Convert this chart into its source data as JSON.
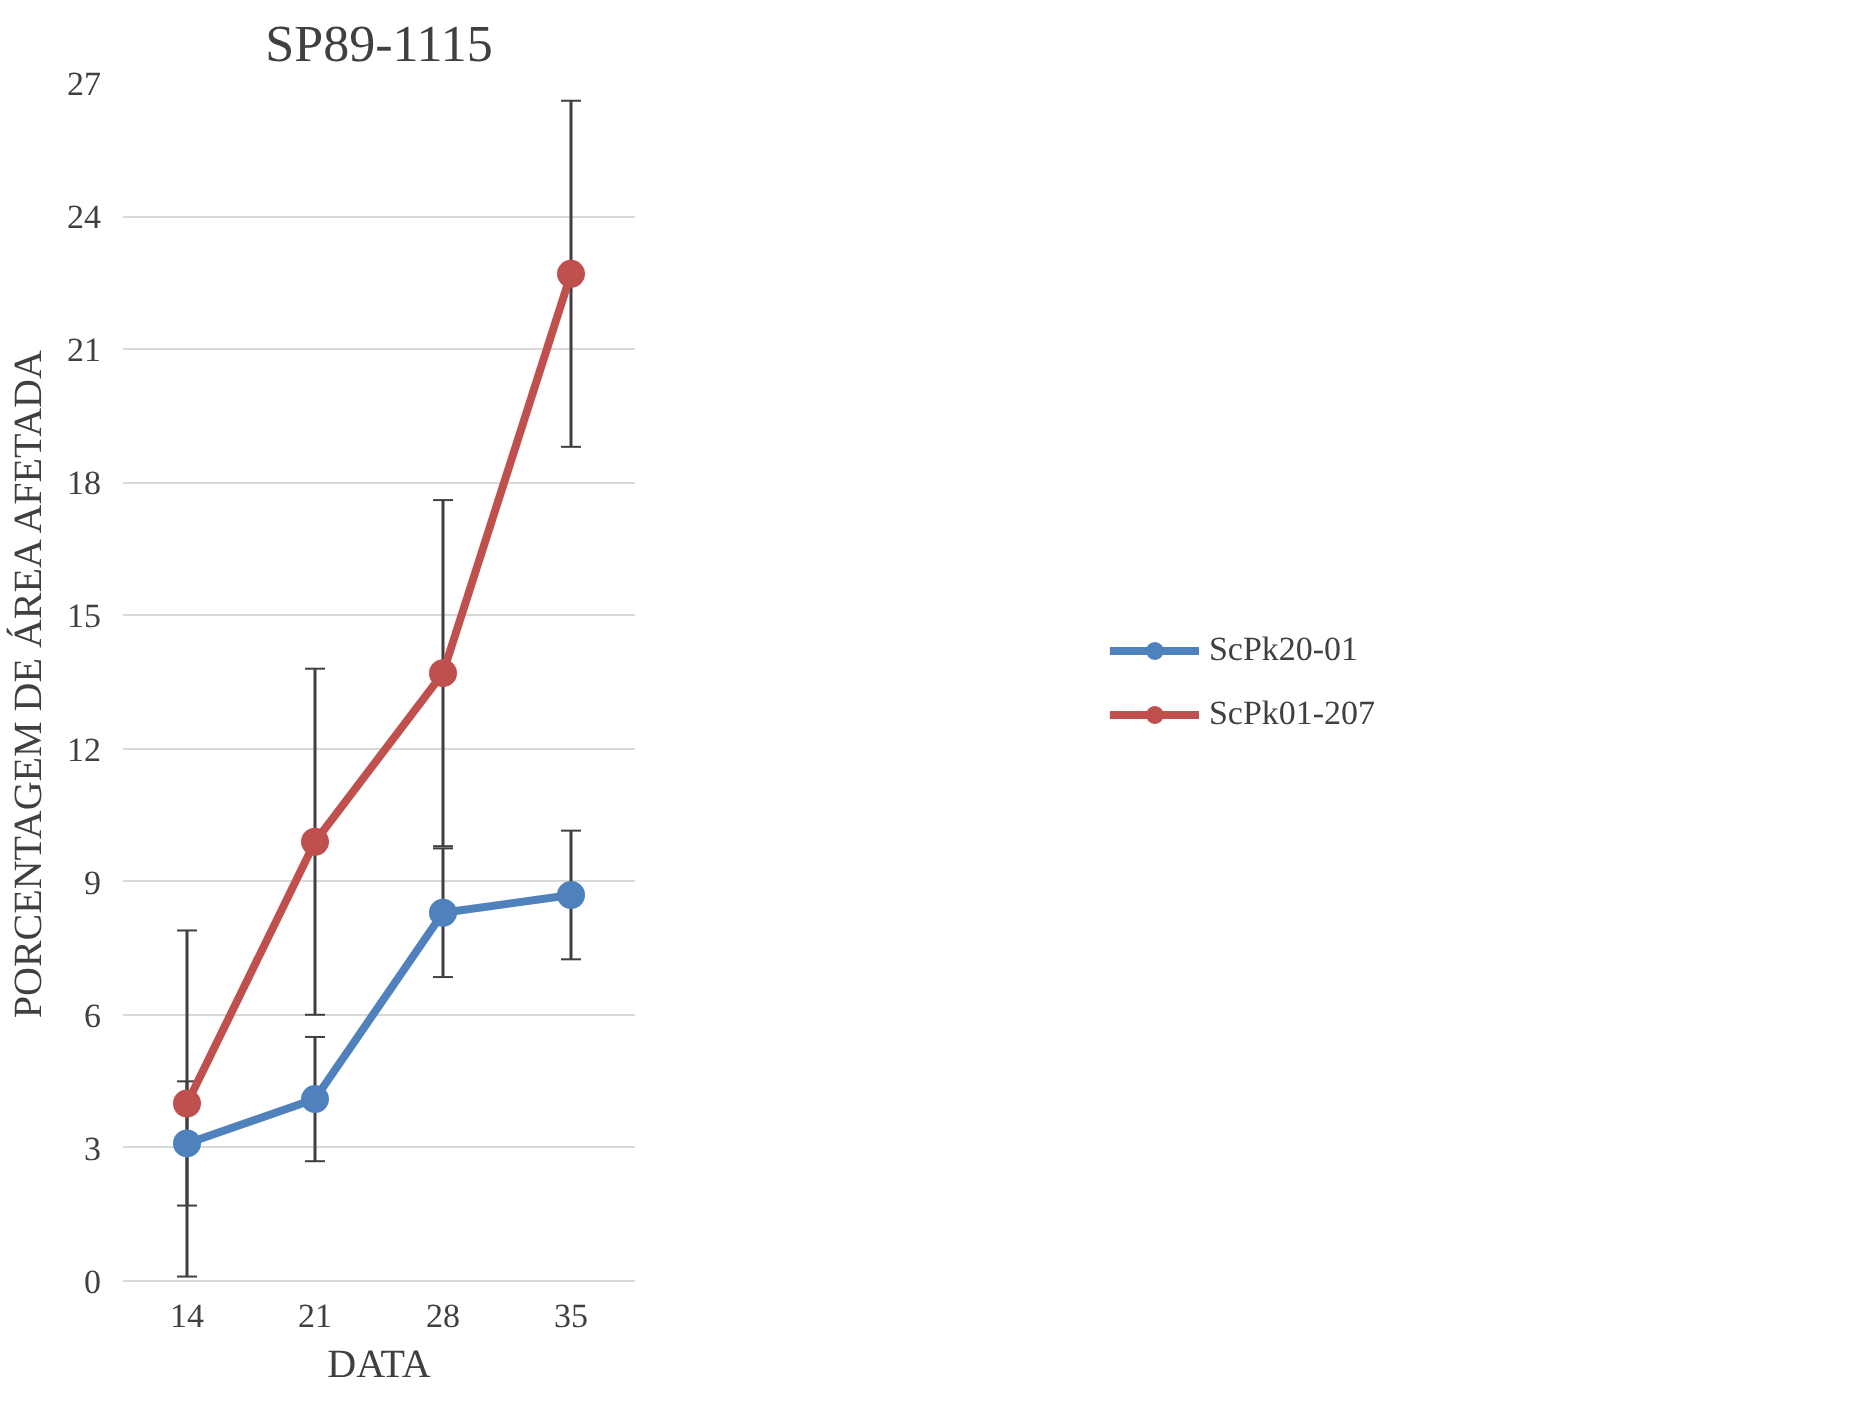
{
  "chart_data": {
    "type": "line",
    "title": "SP89-1115",
    "xlabel": "DATA",
    "ylabel": "PORCENTAGEM DE ÁREA AFETADA",
    "categories": [
      "14",
      "21",
      "28",
      "35"
    ],
    "series": [
      {
        "name": "ScPk20-01",
        "color": "#4f81bd",
        "values": [
          3.1,
          4.1,
          8.3,
          8.7
        ],
        "errors": [
          1.4,
          1.4,
          1.45,
          1.45
        ]
      },
      {
        "name": "ScPk01-207",
        "color": "#c0504d",
        "values": [
          4.0,
          9.9,
          13.7,
          22.7
        ],
        "errors": [
          3.9,
          3.9,
          3.9,
          3.9
        ]
      }
    ],
    "ylim": [
      0,
      27
    ],
    "yticks": [
      0,
      3,
      6,
      9,
      12,
      15,
      18,
      21,
      24,
      27
    ],
    "grid": "y",
    "legend": "right",
    "marker": "circle",
    "line_style": "solid"
  }
}
